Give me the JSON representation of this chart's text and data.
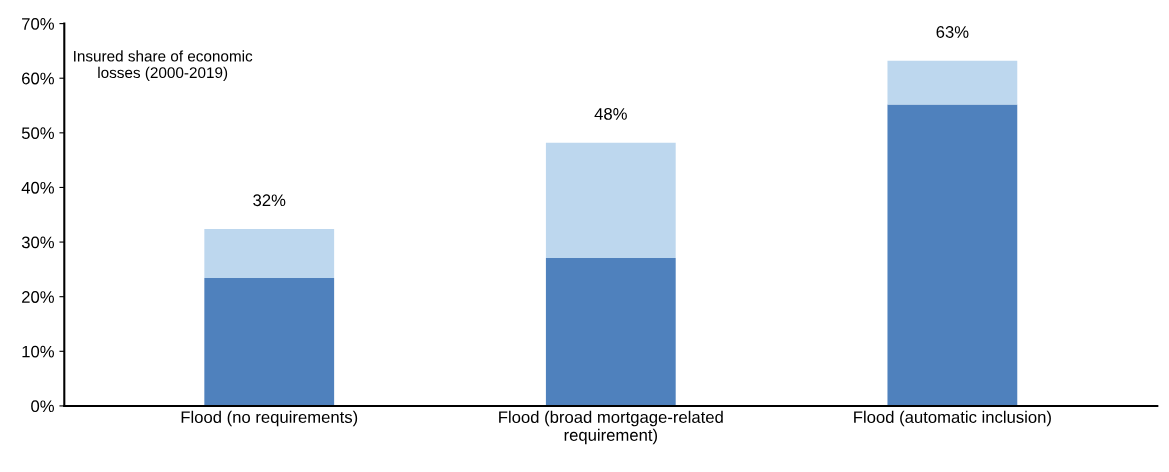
{
  "chart_data": {
    "type": "bar",
    "stacked": true,
    "categories": [
      "Flood (no requirements)",
      "Flood (broad mortgage-related\nrequirement)",
      "Flood (automatic inclusion)"
    ],
    "series": [
      {
        "color": "#4f81bd",
        "values": [
          23.4,
          27.1,
          55.2
        ]
      },
      {
        "color": "#bdd7ee",
        "values": [
          9.0,
          21.1,
          8.0
        ]
      }
    ],
    "totals": [
      "32%",
      "48%",
      "63%"
    ],
    "annotations": [
      "Insured share of economic\nlosses (2000-2019)"
    ],
    "ylim": [
      0,
      70
    ],
    "yticks": [
      {
        "value": 0,
        "label": "0%"
      },
      {
        "value": 10,
        "label": "10%"
      },
      {
        "value": 20,
        "label": "20%"
      },
      {
        "value": 30,
        "label": "30%"
      },
      {
        "value": 40,
        "label": "40%"
      },
      {
        "value": 50,
        "label": "50%"
      },
      {
        "value": 60,
        "label": "60%"
      },
      {
        "value": 70,
        "label": "70%"
      }
    ],
    "grid": false,
    "legend": false
  }
}
